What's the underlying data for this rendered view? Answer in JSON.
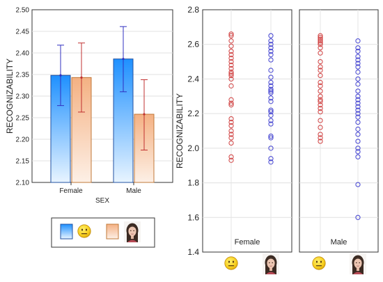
{
  "chart_data": [
    {
      "type": "bar",
      "xlabel": "SEX",
      "ylabel": "RECOGNIZABILITY",
      "categories": [
        "Female",
        "Male"
      ],
      "ylim": [
        2.1,
        2.5
      ],
      "yticks": [
        "2.10",
        "2.15",
        "2.20",
        "2.25",
        "2.30",
        "2.35",
        "2.40",
        "2.45",
        "2.50"
      ],
      "error_bars": true,
      "grid": true,
      "series": [
        {
          "icon": "emoji-face-icon",
          "values": [
            2.348,
            2.386
          ],
          "ci_low": [
            2.278,
            2.31
          ],
          "ci_high": [
            2.418,
            2.461
          ],
          "color": "#1e90ff"
        },
        {
          "icon": "photo-face-icon",
          "values": [
            2.343,
            2.258
          ],
          "ci_low": [
            2.263,
            2.175
          ],
          "ci_high": [
            2.423,
            2.338
          ],
          "color": "#f4b183"
        }
      ],
      "legend": {
        "position": "bottom-center"
      }
    },
    {
      "type": "scatter",
      "ylabel": "RECOGNIZABILITY",
      "ylim": [
        1.4,
        2.8
      ],
      "yticks": [
        "1.4",
        "1.6",
        "1.8",
        "2.0",
        "2.2",
        "2.4",
        "2.6",
        "2.8"
      ],
      "grid": true,
      "panels": [
        {
          "label": "Female",
          "groups": [
            {
              "icon": "emoji-face-icon",
              "color": "#d04040",
              "values": [
                2.66,
                2.65,
                2.62,
                2.59,
                2.56,
                2.54,
                2.52,
                2.5,
                2.48,
                2.46,
                2.44,
                2.43,
                2.42,
                2.4,
                2.36,
                2.28,
                2.26,
                2.25,
                2.17,
                2.15,
                2.13,
                2.1,
                2.08,
                2.06,
                2.03,
                1.95,
                1.93
              ]
            },
            {
              "icon": "photo-face-icon",
              "color": "#4040d0",
              "values": [
                2.65,
                2.62,
                2.6,
                2.58,
                2.56,
                2.54,
                2.51,
                2.45,
                2.41,
                2.38,
                2.36,
                2.34,
                2.33,
                2.32,
                2.29,
                2.27,
                2.22,
                2.21,
                2.19,
                2.16,
                2.14,
                2.07,
                2.06,
                2.0,
                1.94,
                1.92
              ]
            }
          ]
        },
        {
          "label": "Male",
          "groups": [
            {
              "icon": "emoji-face-icon",
              "color": "#d04040",
              "values": [
                2.65,
                2.64,
                2.63,
                2.62,
                2.61,
                2.6,
                2.58,
                2.55,
                2.5,
                2.47,
                2.45,
                2.42,
                2.38,
                2.36,
                2.33,
                2.3,
                2.28,
                2.27,
                2.25,
                2.23,
                2.21,
                2.16,
                2.12,
                2.08,
                2.06,
                2.04
              ]
            },
            {
              "icon": "photo-face-icon",
              "color": "#4040d0",
              "values": [
                2.62,
                2.58,
                2.56,
                2.53,
                2.51,
                2.49,
                2.47,
                2.44,
                2.4,
                2.37,
                2.33,
                2.3,
                2.28,
                2.26,
                2.24,
                2.22,
                2.2,
                2.18,
                2.15,
                2.11,
                2.08,
                2.04,
                2.0,
                1.98,
                1.95,
                1.79,
                1.6
              ]
            }
          ]
        }
      ]
    }
  ]
}
